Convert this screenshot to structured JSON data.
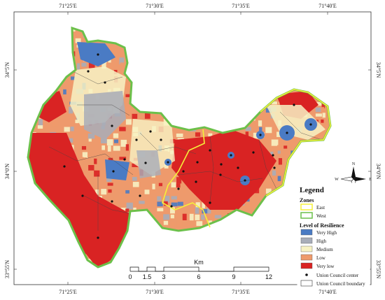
{
  "coordinates": {
    "top_longitudes": [
      "71°25'E",
      "71°30'E",
      "71°35'E",
      "71°40'E"
    ],
    "bottom_longitudes": [
      "71°25'E",
      "71°30'E",
      "71°35'E",
      "71°40'E"
    ],
    "left_latitudes": [
      "34°5'N",
      "34°0'N",
      "33°55'N"
    ],
    "right_latitudes": [
      "34°5'N",
      "34°0'N",
      "33°55'N"
    ]
  },
  "legend": {
    "title": "Legend",
    "zones_title": "Zones",
    "zones": [
      {
        "label": "East",
        "color": "#f5f03a"
      },
      {
        "label": "West",
        "color": "#6cc04a"
      }
    ],
    "resilience_title": "Level of Resilience",
    "levels": [
      {
        "label": "Very High",
        "color": "#4a7bc4"
      },
      {
        "label": "High",
        "color": "#a8adb9"
      },
      {
        "label": "Medium",
        "color": "#f7f2c4"
      },
      {
        "label": "Low",
        "color": "#ee9a6c"
      },
      {
        "label": "Very low",
        "color": "#d92323"
      }
    ],
    "uc_center_label": "Union Council center",
    "uc_boundary_label": "Union Council boundary"
  },
  "scalebar": {
    "unit": "Km",
    "labels": [
      "0",
      "1.5",
      "3",
      "6",
      "9",
      "12"
    ]
  },
  "compass": {
    "n": "N",
    "s": "S",
    "e": "E",
    "w": "W"
  }
}
